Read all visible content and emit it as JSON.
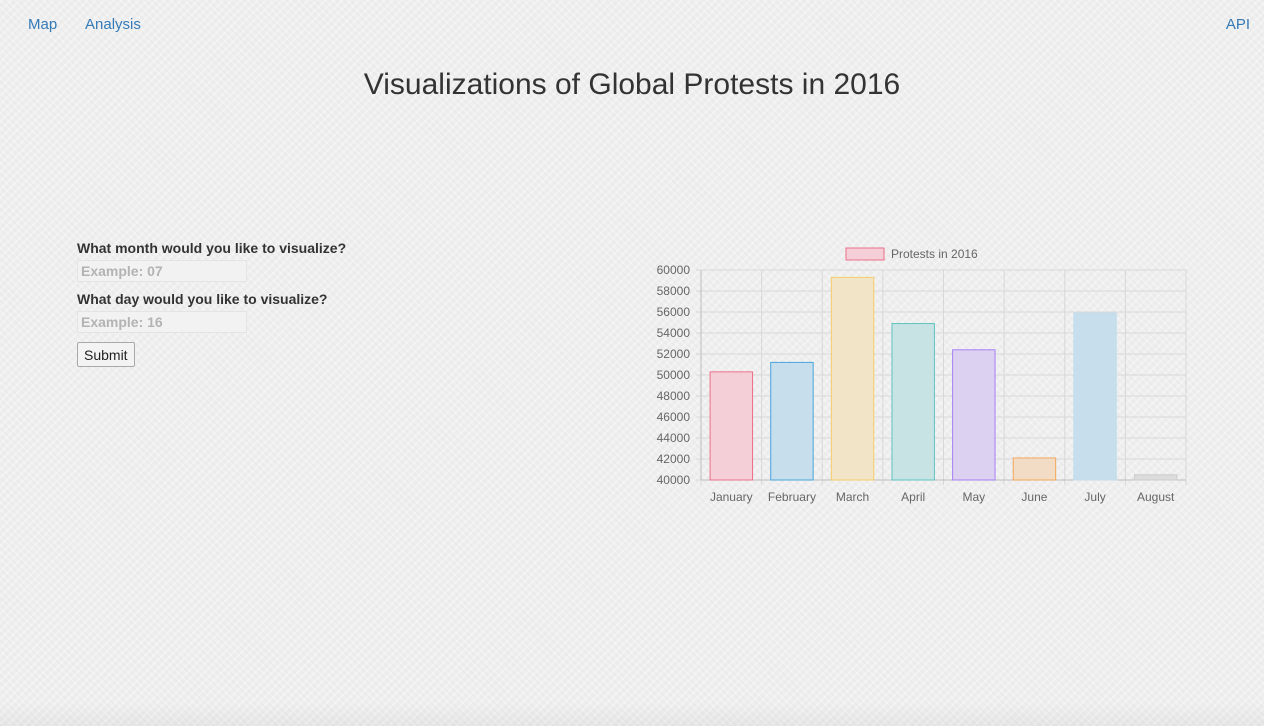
{
  "nav": {
    "map_label": "Map",
    "analysis_label": "Analysis",
    "api_label": "API"
  },
  "page": {
    "title": "Visualizations of Global Protests in 2016"
  },
  "form": {
    "month_label": "What month would you like to visualize?",
    "month_placeholder": "Example: 07",
    "day_label": "What day would you like to visualize?",
    "day_placeholder": "Example: 16",
    "submit_label": "Submit"
  },
  "colors": {
    "link": "#337ab7"
  },
  "chart_data": {
    "type": "bar",
    "legend": "Protests in 2016",
    "legend_position": "top",
    "categories": [
      "January",
      "February",
      "March",
      "April",
      "May",
      "June",
      "July",
      "August"
    ],
    "series": [
      {
        "name": "Protests in 2016",
        "values": [
          50300,
          51200,
          59300,
          54900,
          52400,
          42100,
          55900,
          40500
        ]
      }
    ],
    "ylim": [
      40000,
      60000
    ],
    "yticks": [
      40000,
      42000,
      44000,
      46000,
      48000,
      50000,
      52000,
      54000,
      56000,
      58000,
      60000
    ],
    "grid": true,
    "bar_fills": [
      "#f4cfd7",
      "#c7deec",
      "#f2e4c6",
      "#c8e3e4",
      "#ddd1f2",
      "#f2dcc6",
      "#c7deec",
      "#dcdcdc"
    ],
    "bar_borders": [
      "#ec6f8a",
      "#4aa4dc",
      "#f4cd6a",
      "#5ec3c1",
      "#a67ff2",
      "#f2a65a",
      "#c3dcee",
      "#cccccc"
    ]
  }
}
